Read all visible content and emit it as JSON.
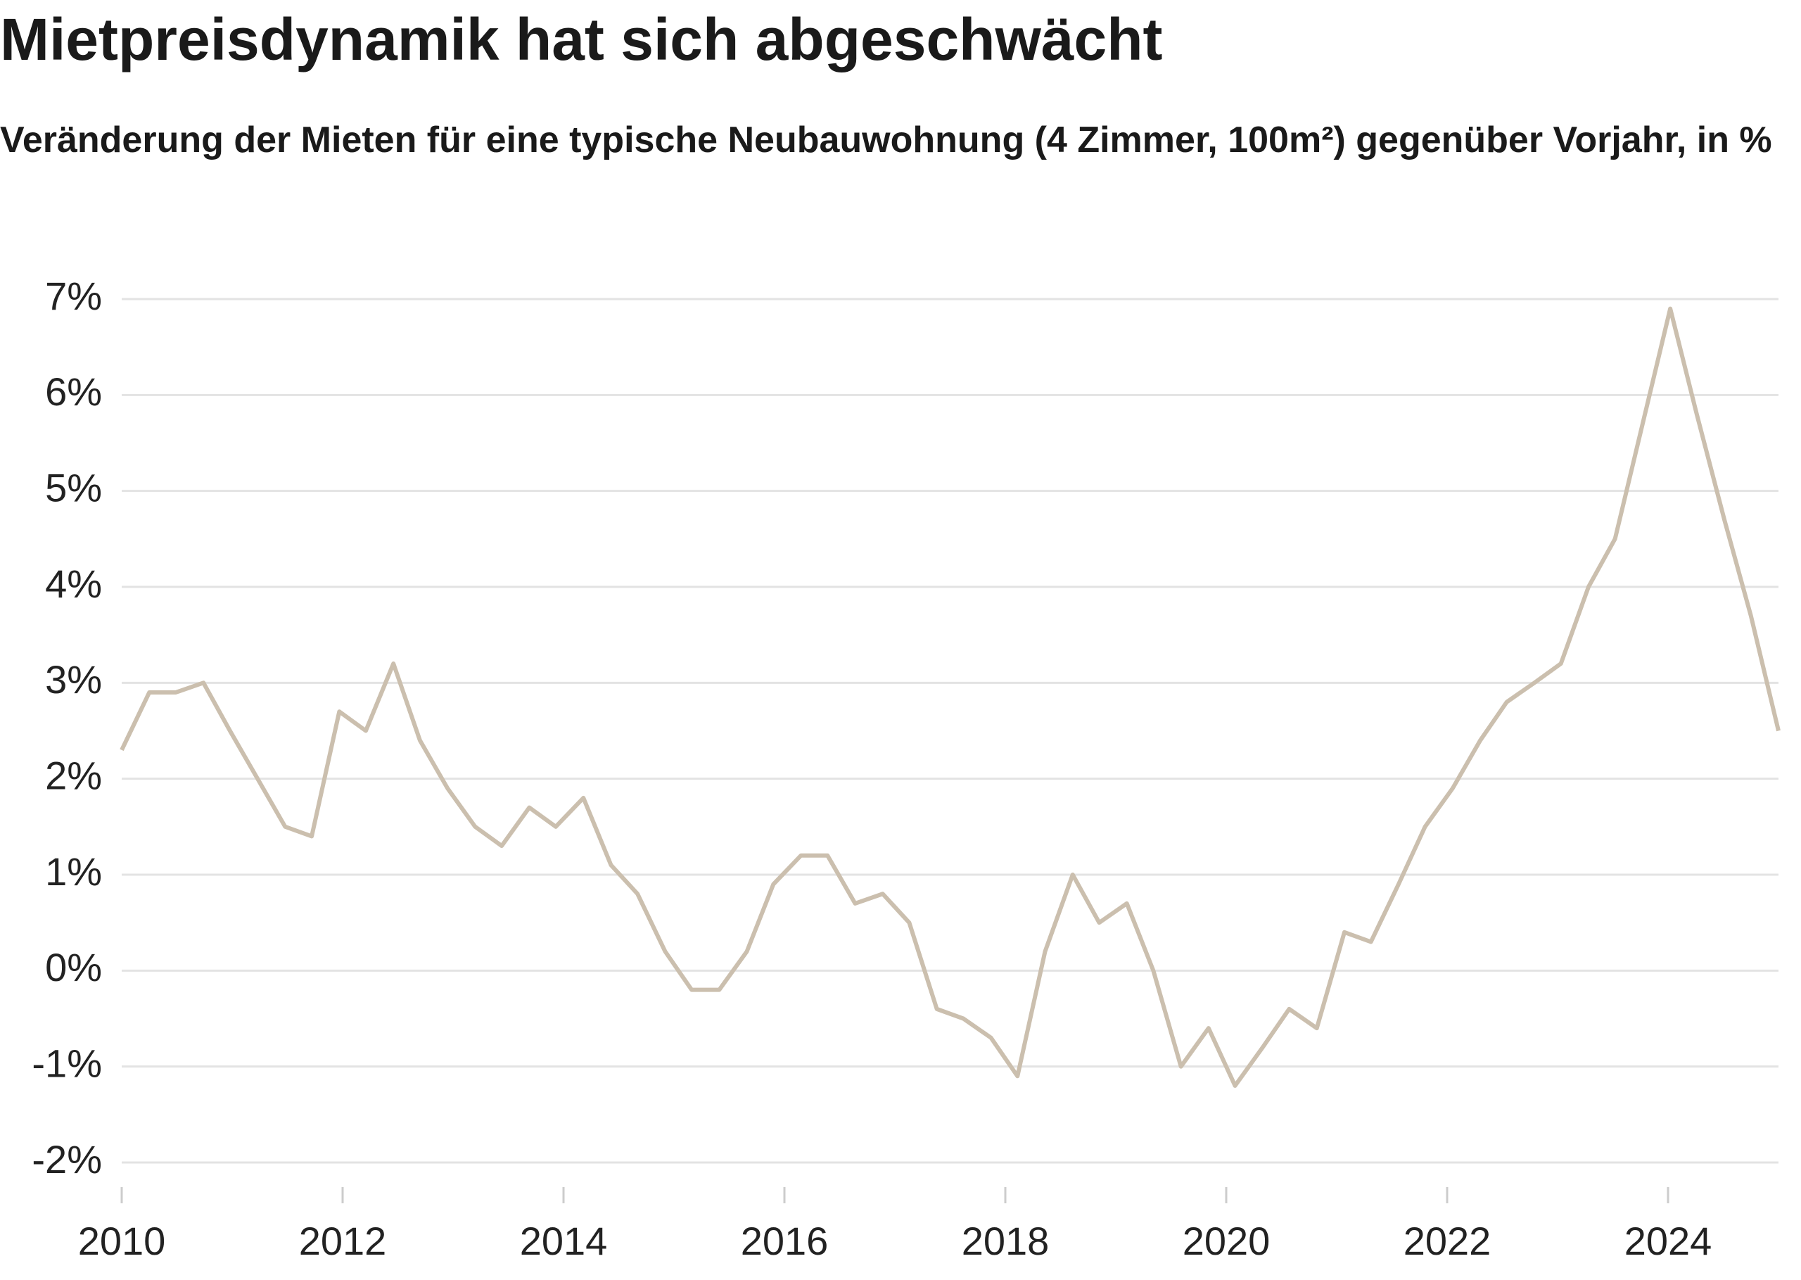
{
  "chart_data": {
    "type": "line",
    "title": "Mietpreisdynamik hat sich abgeschwächt",
    "subtitle": "Veränderung der Mieten für eine typische Neubauwohnung (4 Zimmer, 100m²) gegenüber Vorjahr, in %",
    "x": [
      2010,
      2010.25,
      2010.49,
      2010.74,
      2010.98,
      2011.23,
      2011.48,
      2011.72,
      2011.97,
      2012.21,
      2012.46,
      2012.7,
      2012.95,
      2013.2,
      2013.44,
      2013.69,
      2013.93,
      2014.18,
      2014.43,
      2014.67,
      2014.92,
      2015.16,
      2015.41,
      2015.66,
      2015.9,
      2016.15,
      2016.39,
      2016.64,
      2016.89,
      2017.13,
      2017.38,
      2017.62,
      2017.87,
      2018.11,
      2018.36,
      2018.61,
      2018.85,
      2019.1,
      2019.34,
      2019.59,
      2019.84,
      2020.08,
      2020.33,
      2020.57,
      2020.82,
      2021.07,
      2021.31,
      2021.56,
      2021.8,
      2022.05,
      2022.3,
      2022.54,
      2022.79,
      2023.03,
      2023.28,
      2023.52,
      2023.77,
      2024.02,
      2024.26,
      2024.51,
      2024.75,
      2025
    ],
    "series": [
      {
        "name": "Veränderung der Mieten",
        "color": "#cbbfae",
        "values": [
          2.3,
          2.9,
          2.9,
          3.0,
          2.5,
          2.0,
          1.5,
          1.4,
          2.7,
          2.5,
          3.2,
          2.4,
          1.9,
          1.5,
          1.3,
          1.7,
          1.5,
          1.8,
          1.1,
          0.8,
          0.2,
          -0.2,
          -0.2,
          0.2,
          0.9,
          1.2,
          1.2,
          0.7,
          0.8,
          0.5,
          -0.4,
          -0.5,
          -0.7,
          -1.1,
          0.2,
          1.0,
          0.5,
          0.7,
          0.0,
          -1.0,
          -0.6,
          -1.2,
          -0.8,
          -0.4,
          -0.6,
          0.4,
          0.3,
          0.9,
          1.5,
          1.9,
          2.4,
          2.8,
          3.0,
          3.2,
          4.0,
          4.5,
          5.7,
          6.9,
          5.8,
          4.7,
          3.7,
          2.5
        ]
      }
    ],
    "xlim": [
      2010,
      2025
    ],
    "xticks": [
      2010,
      2012,
      2014,
      2016,
      2018,
      2020,
      2022,
      2024
    ],
    "ylim": [
      -2,
      7
    ],
    "yticks": [
      {
        "value": -2,
        "label": "-2%"
      },
      {
        "value": -1,
        "label": "-1%"
      },
      {
        "value": 0,
        "label": "0%"
      },
      {
        "value": 1,
        "label": "1%"
      },
      {
        "value": 2,
        "label": "2%"
      },
      {
        "value": 3,
        "label": "3%"
      },
      {
        "value": 4,
        "label": "4%"
      },
      {
        "value": 5,
        "label": "5%"
      },
      {
        "value": 6,
        "label": "6%"
      },
      {
        "value": 7,
        "label": "7%"
      }
    ],
    "grid": true
  }
}
